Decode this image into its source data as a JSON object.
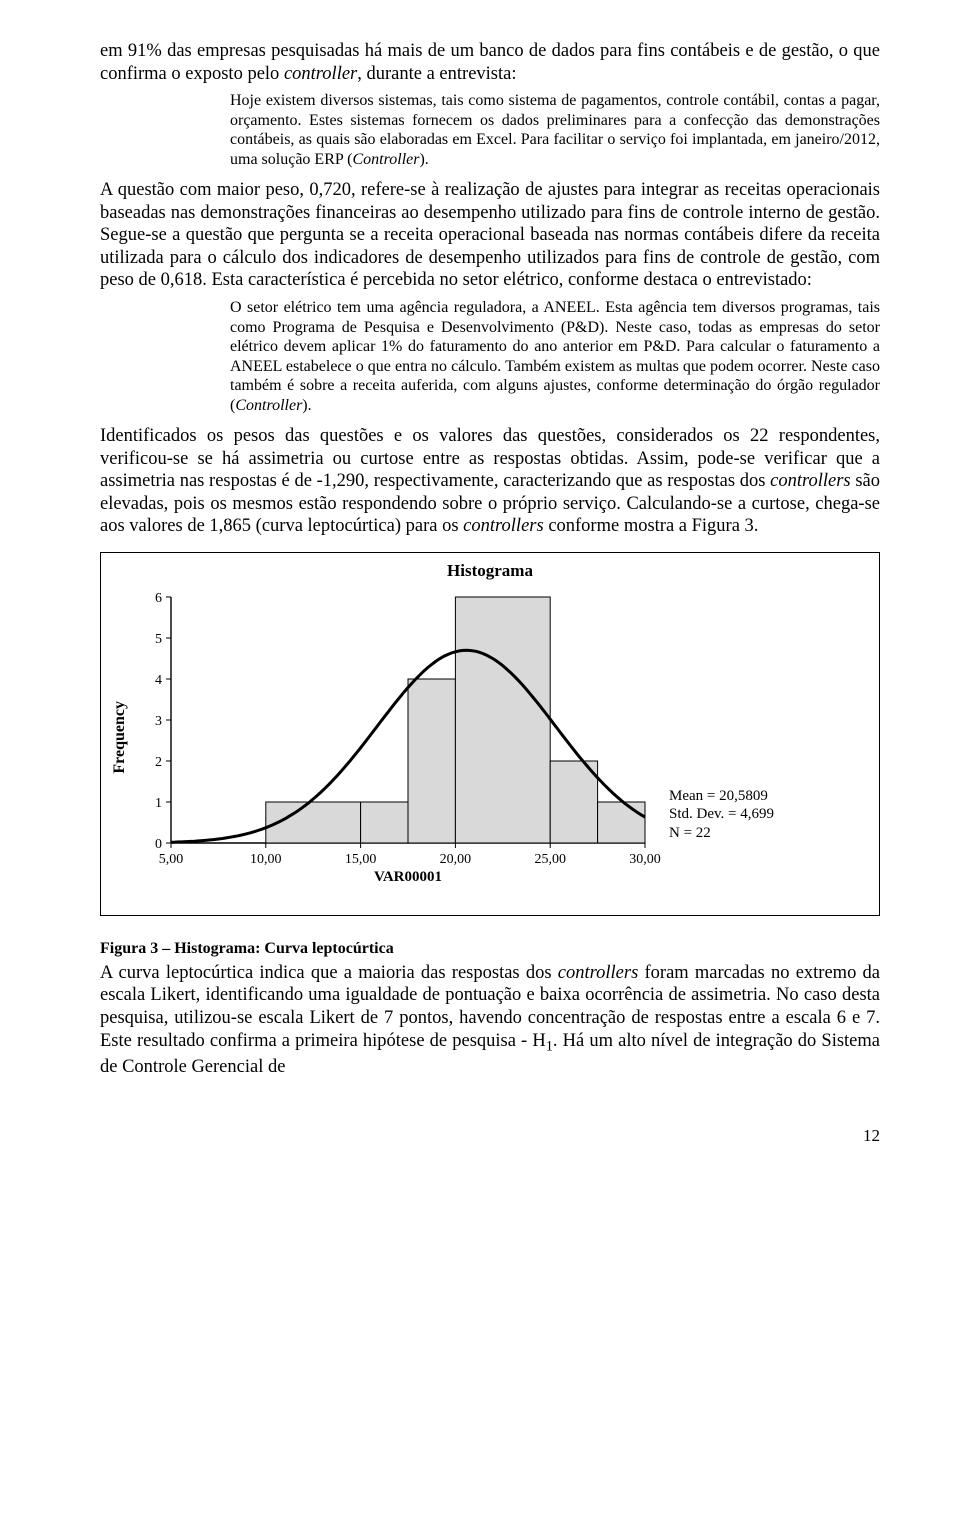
{
  "para1_a": "em 91% das empresas pesquisadas há mais de um banco de dados para fins contábeis e de gestão, o que confirma o exposto pelo ",
  "para1_b": "controller",
  "para1_c": ", durante a entrevista:",
  "quote1_a": "Hoje existem diversos sistemas, tais como sistema de pagamentos, controle contábil, contas a pagar, orçamento. Estes sistemas fornecem os dados preliminares para a confecção das demonstrações contábeis, as quais são elaboradas em Excel. Para facilitar o serviço foi implantada, em janeiro/2012, uma solução ERP (",
  "quote1_b": "Controller",
  "quote1_c": ").",
  "para2": "A questão com maior peso, 0,720, refere-se à realização de ajustes para integrar as receitas operacionais baseadas nas demonstrações financeiras ao desempenho utilizado para fins de controle interno de gestão. Segue-se a questão que pergunta se a receita operacional baseada nas normas contábeis difere da receita utilizada para o cálculo dos indicadores de desempenho utilizados para fins de controle de gestão, com peso de 0,618. Esta característica é percebida no setor elétrico, conforme destaca o entrevistado:",
  "quote2_a": "O setor elétrico tem uma agência reguladora, a ANEEL. Esta agência tem diversos programas, tais como Programa de Pesquisa e Desenvolvimento (P&D). Neste caso, todas as empresas do setor elétrico devem aplicar 1% do faturamento do ano anterior em P&D. Para calcular o faturamento a ANEEL estabelece o que entra no cálculo. Também existem as multas que podem ocorrer. Neste caso também é sobre a receita auferida, com alguns ajustes, conforme determinação do órgão regulador (",
  "quote2_b": "Controller",
  "quote2_c": ").",
  "para3_a": "Identificados os pesos das questões e os valores das questões, considerados os 22 respondentes, verificou-se se há assimetria ou curtose entre as respostas obtidas. Assim, pode-se verificar que a assimetria nas respostas é de -1,290, respectivamente, caracterizando que as respostas dos ",
  "para3_b": "controllers",
  "para3_c": " são elevadas, pois os mesmos estão respondendo sobre o próprio serviço. Calculando-se a curtose, chega-se aos valores de 1,865 (curva leptocúrtica) para os ",
  "para3_d": "controllers",
  "para3_e": " conforme mostra a Figura 3.",
  "chart": {
    "title": "Histograma",
    "ylabel": "Frequency",
    "xlabel": "VAR00001",
    "y_ticks": [
      0,
      1,
      2,
      3,
      4,
      5,
      6
    ],
    "x_ticks": [
      "5,00",
      "10,00",
      "15,00",
      "20,00",
      "25,00",
      "30,00"
    ],
    "bars": [
      {
        "x": 10,
        "w": 5,
        "h": 1
      },
      {
        "x": 15,
        "w": 2.5,
        "h": 1
      },
      {
        "x": 17.5,
        "w": 2.5,
        "h": 4
      },
      {
        "x": 20,
        "w": 5,
        "h": 6
      },
      {
        "x": 25,
        "w": 2.5,
        "h": 2
      },
      {
        "x": 27.5,
        "w": 2.5,
        "h": 1
      }
    ],
    "xlim": [
      5,
      30
    ],
    "ylim": [
      0,
      6
    ],
    "bar_fill": "#d9d9d9",
    "bar_stroke": "#000000",
    "curve_stroke": "#000000",
    "curve_width": 3,
    "stats": {
      "mean_label": "Mean = 20,5809",
      "std_label": "Std. Dev. = 4,699",
      "n_label": "N = 22"
    }
  },
  "fig_caption": "Figura 3 – Histograma: Curva leptocúrtica",
  "para4_a": "A curva leptocúrtica indica que a maioria das respostas dos ",
  "para4_b": "controllers",
  "para4_c": " foram marcadas no extremo da escala Likert, identificando uma igualdade de pontuação e baixa ocorrência de assimetria. No caso desta pesquisa, utilizou-se escala Likert de 7 pontos, havendo concentração de respostas entre a escala 6 e 7. Este resultado confirma a primeira hipótese de pesquisa - H",
  "para4_d": "1",
  "para4_e": ". Há um alto nível de integração do Sistema de Controle Gerencial de",
  "page_number": "12"
}
